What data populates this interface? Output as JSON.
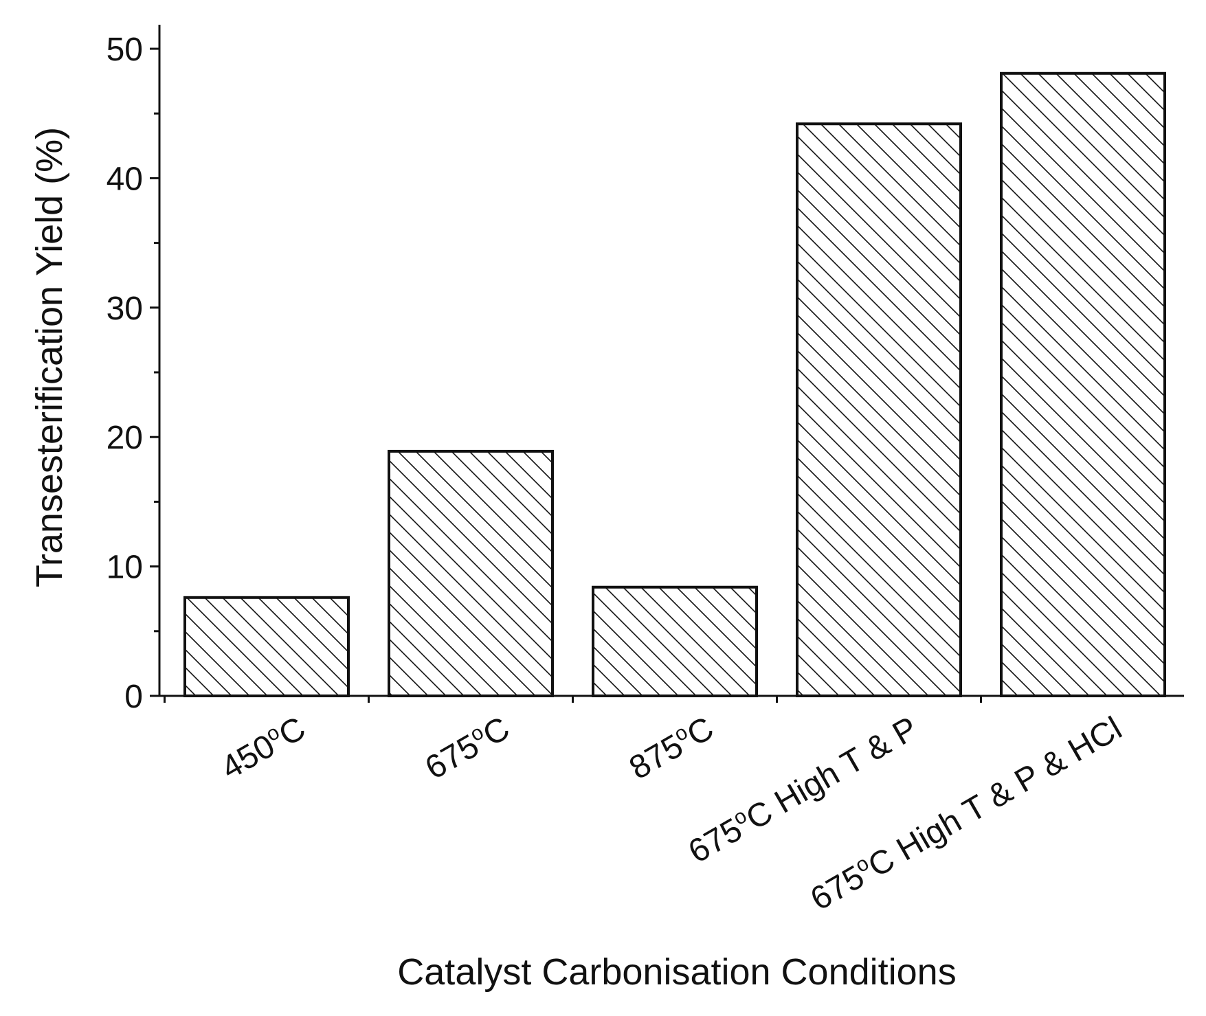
{
  "chart_data": {
    "type": "bar",
    "categories": [
      {
        "pre": "450",
        "deg": "o",
        "post": "C"
      },
      {
        "pre": "675",
        "deg": "o",
        "post": "C"
      },
      {
        "pre": "875",
        "deg": "o",
        "post": "C"
      },
      {
        "pre": "675",
        "deg": "o",
        "post": "C High T & P"
      },
      {
        "pre": "675",
        "deg": "o",
        "post": "C High T & P & HCl"
      }
    ],
    "values": [
      7.6,
      18.9,
      8.4,
      44.2,
      48.1
    ],
    "xlabel": "Catalyst Carbonisation Conditions",
    "ylabel": "Transesterification Yield (%)",
    "ylim": [
      0,
      50
    ],
    "yticks": [
      "0",
      "10",
      "20",
      "30",
      "40",
      "50"
    ],
    "grid": false,
    "bar_fill": "hatched",
    "colors": {
      "stroke": "#111111",
      "background": "#ffffff"
    }
  }
}
